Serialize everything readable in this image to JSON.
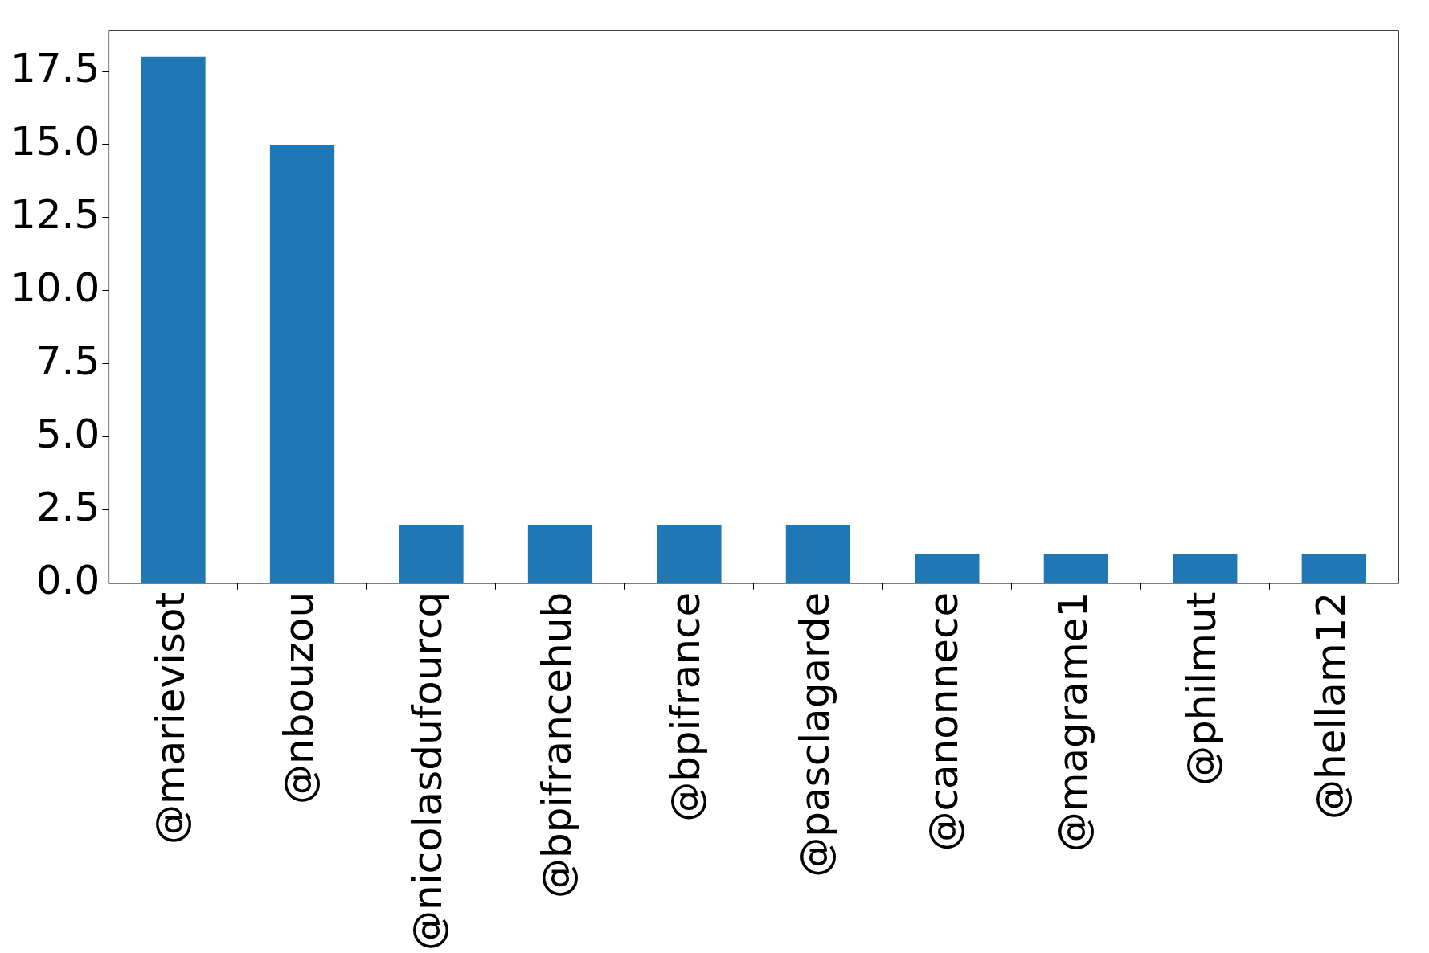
{
  "chart_data": {
    "type": "bar",
    "categories": [
      "@marievisot",
      "@nbouzou",
      "@nicolasdufourcq",
      "@bpifrancehub",
      "@bpifrance",
      "@pasclagarde",
      "@canonnece",
      "@magrame1",
      "@philmut",
      "@hellam12"
    ],
    "values": [
      18,
      15,
      2,
      2,
      2,
      2,
      1,
      1,
      1,
      1
    ],
    "color": "#1f77b4",
    "ylim": [
      0,
      18.9
    ],
    "yticks": [
      {
        "value": 0,
        "label": "0.0"
      },
      {
        "value": 2.5,
        "label": "2.5"
      },
      {
        "value": 5,
        "label": "5.0"
      },
      {
        "value": 7.5,
        "label": "7.5"
      },
      {
        "value": 10,
        "label": "10.0"
      },
      {
        "value": 12.5,
        "label": "12.5"
      },
      {
        "value": 15,
        "label": "15.0"
      },
      {
        "value": 17.5,
        "label": "17.5"
      }
    ]
  }
}
